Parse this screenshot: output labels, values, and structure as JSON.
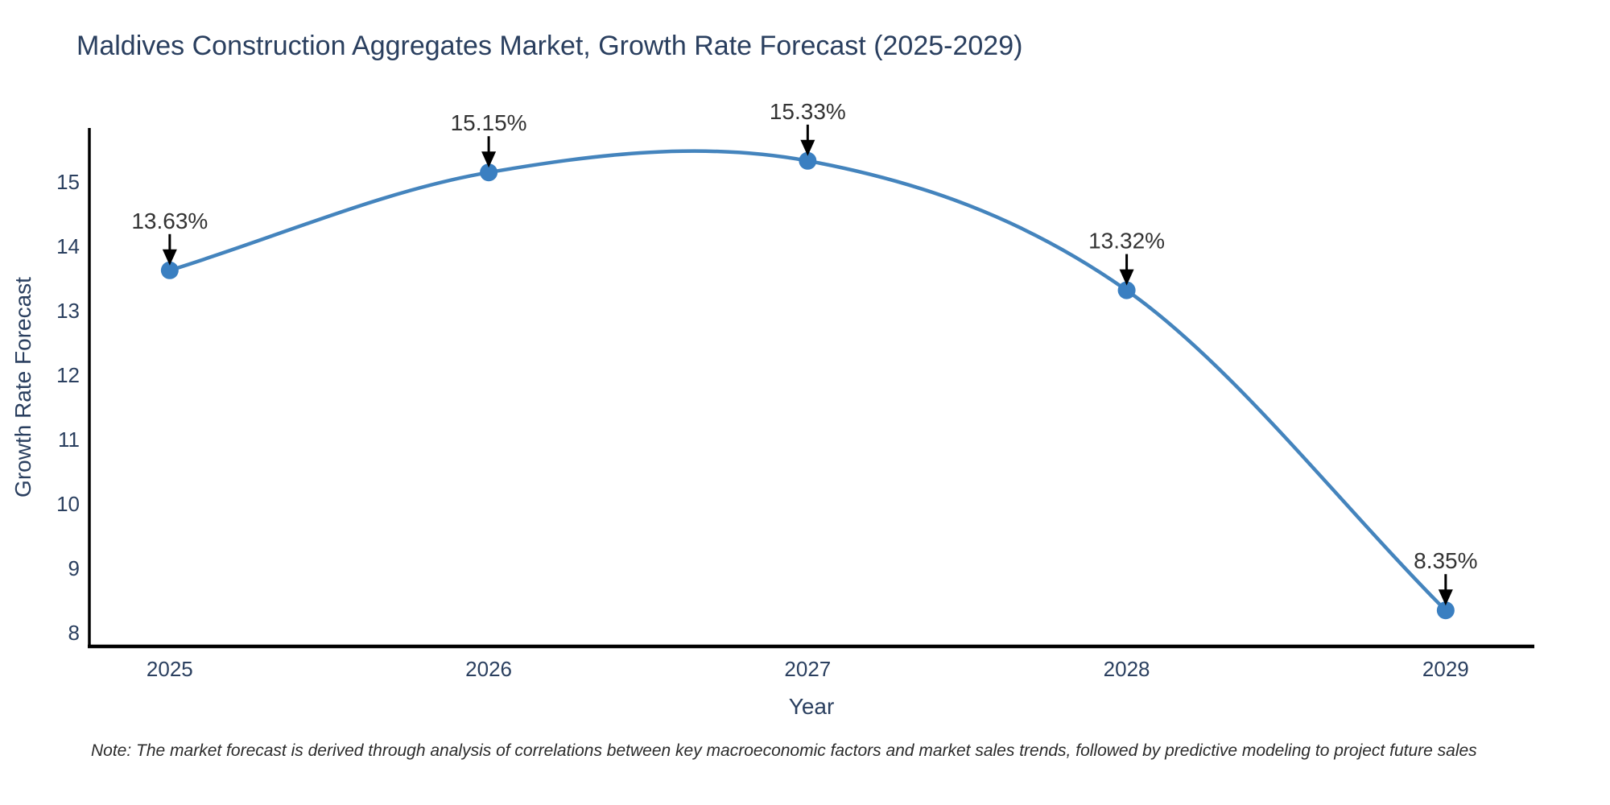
{
  "note": "Note: The market forecast is derived through analysis of correlations between key macroeconomic factors and market sales trends, followed by predictive modeling to project future sales",
  "chart_data": {
    "type": "line",
    "title": "Maldives Construction Aggregates Market, Growth Rate Forecast (2025-2029)",
    "xlabel": "Year",
    "ylabel": "Growth Rate Forecast",
    "x": [
      2025,
      2026,
      2027,
      2028,
      2029
    ],
    "series": [
      {
        "name": "Growth Rate Forecast",
        "values": [
          13.63,
          15.15,
          15.33,
          13.32,
          8.35
        ],
        "point_labels": [
          "13.63%",
          "15.15%",
          "15.33%",
          "13.32%",
          "8.35%"
        ]
      }
    ],
    "xticks": [
      "2025",
      "2026",
      "2027",
      "2028",
      "2029"
    ],
    "yticks": [
      8,
      9,
      10,
      11,
      12,
      13,
      14,
      15
    ],
    "xlim": [
      2024.748,
      2029.278
    ],
    "ylim": [
      7.79,
      15.84
    ],
    "grid": false,
    "line_shape": "spline",
    "colors": {
      "line": "#4484bd",
      "marker": "#3a7fc1",
      "axis": "#000000",
      "tick_label": "#2a3f5f",
      "annotation_text": "#333333",
      "annotation_arrow": "#000000",
      "background": "#ffffff"
    }
  }
}
